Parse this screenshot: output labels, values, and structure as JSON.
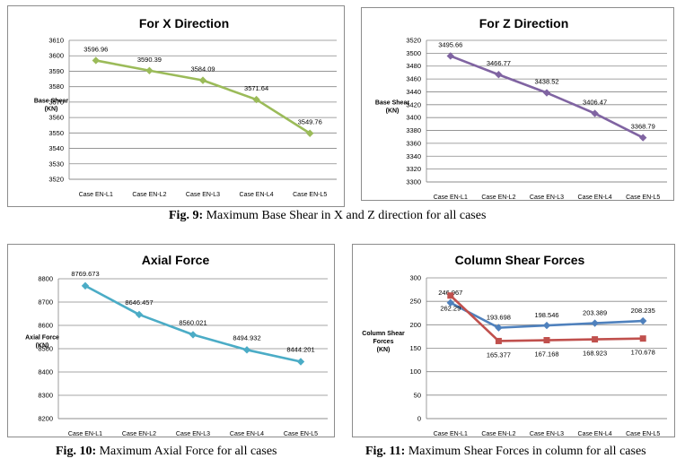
{
  "chart_data": [
    {
      "type": "line",
      "title": "For X Direction",
      "ylabel": [
        "Base Shear",
        "(KN)"
      ],
      "categories": [
        "Case EN-L1",
        "Case EN-L2",
        "Case EN-L3",
        "Case EN-L4",
        "Case EN-L5"
      ],
      "ylim": [
        3520,
        3610
      ],
      "yticks": [
        3520,
        3530,
        3540,
        3550,
        3560,
        3570,
        3580,
        3590,
        3600,
        3610
      ],
      "series": [
        {
          "values": [
            3596.96,
            3590.39,
            3584.09,
            3571.64,
            3549.76
          ],
          "labels": [
            "3596.96",
            "3590.39",
            "3584.09",
            "3571.64",
            "3549.76"
          ],
          "color": "#9bbb59",
          "marker": "diamond"
        }
      ]
    },
    {
      "type": "line",
      "title": "For Z Direction",
      "ylabel": [
        "Base Shear",
        "(KN)"
      ],
      "categories": [
        "Case EN-L1",
        "Case EN-L2",
        "Case EN-L3",
        "Case EN-L4",
        "Case EN-L5"
      ],
      "ylim": [
        3300,
        3520
      ],
      "yticks": [
        3300,
        3320,
        3340,
        3360,
        3380,
        3400,
        3420,
        3440,
        3460,
        3480,
        3500,
        3520
      ],
      "series": [
        {
          "values": [
            3495.66,
            3466.77,
            3438.52,
            3406.47,
            3368.79
          ],
          "labels": [
            "3495.66",
            "3466.77",
            "3438.52",
            "3406.47",
            "3368.79"
          ],
          "color": "#8064a2",
          "marker": "diamond"
        }
      ]
    },
    {
      "type": "line",
      "title": "Axial Force",
      "ylabel": [
        "Axial Force",
        "(KN)"
      ],
      "categories": [
        "Case EN-L1",
        "Case EN-L2",
        "Case EN-L3",
        "Case EN-L4",
        "Case EN-L5"
      ],
      "ylim": [
        8200,
        8800
      ],
      "yticks": [
        8200,
        8300,
        8400,
        8500,
        8600,
        8700,
        8800
      ],
      "series": [
        {
          "values": [
            8769.673,
            8646.457,
            8560.021,
            8494.932,
            8444.201
          ],
          "labels": [
            "8769.673",
            "8646.457",
            "8560.021",
            "8494.932",
            "8444.201"
          ],
          "color": "#4bacc6",
          "marker": "diamond"
        }
      ]
    },
    {
      "type": "line",
      "title": "Column Shear Forces",
      "ylabel": [
        "Column Shear",
        "Forces",
        "(KN)"
      ],
      "categories": [
        "Case EN-L1",
        "Case EN-L2",
        "Case EN-L3",
        "Case EN-L4",
        "Case EN-L5"
      ],
      "ylim": [
        0,
        300
      ],
      "yticks": [
        0,
        50,
        100,
        150,
        200,
        250,
        300
      ],
      "series": [
        {
          "values": [
            246.967,
            193.698,
            198.546,
            203.389,
            208.235
          ],
          "labels": [
            "246.967",
            "193.698",
            "198.546",
            "203.389",
            "208.235"
          ],
          "color": "#4f81bd",
          "marker": "diamond"
        },
        {
          "values": [
            262.29,
            165.377,
            167.168,
            168.923,
            170.678
          ],
          "labels": [
            "262.29",
            "165.377",
            "167.168",
            "168.923",
            "170.678"
          ],
          "color": "#c0504d",
          "marker": "square"
        }
      ]
    }
  ],
  "captions": [
    {
      "label": "Fig. 9:",
      "text": " Maximum Base Shear in X and Z direction for all cases"
    },
    {
      "label": "Fig. 10:",
      "text": " Maximum Axial Force for all cases"
    },
    {
      "label": "Fig. 11:",
      "text": " Maximum Shear Forces in column for all cases"
    }
  ]
}
